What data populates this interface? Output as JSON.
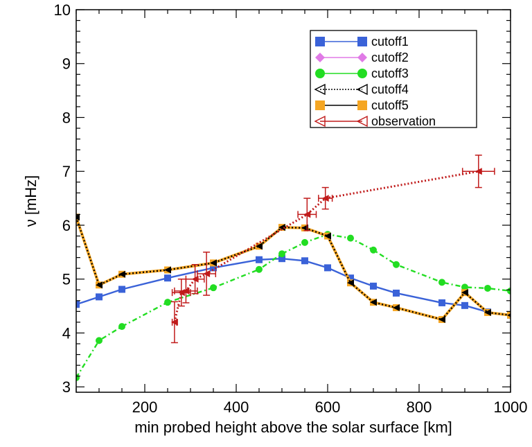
{
  "chart_data": {
    "type": "line",
    "title": "",
    "xlabel": "min probed height above the solar surface [km]",
    "ylabel": "ν [mHz]",
    "xlim": [
      50,
      1000
    ],
    "ylim": [
      2.9,
      10
    ],
    "xticks": [
      200,
      400,
      600,
      800,
      1000
    ],
    "xtick_labels": [
      "200",
      "400",
      "600",
      "800",
      "1000"
    ],
    "yticks": [
      3,
      4,
      5,
      6,
      7,
      8,
      9,
      10
    ],
    "ytick_labels": [
      "3",
      "4",
      "5",
      "6",
      "7",
      "8",
      "9",
      "10"
    ],
    "legend_position": "top-right",
    "series": [
      {
        "name": "cutoff1",
        "color": "#3a62d8",
        "line": "solid",
        "marker": "square",
        "points": [
          [
            50,
            4.53
          ],
          [
            100,
            4.67
          ],
          [
            150,
            4.81
          ],
          [
            250,
            5.02
          ],
          [
            350,
            5.21
          ],
          [
            450,
            5.36
          ],
          [
            500,
            5.38
          ],
          [
            550,
            5.34
          ],
          [
            600,
            5.21
          ],
          [
            650,
            5.02
          ],
          [
            700,
            4.87
          ],
          [
            750,
            4.74
          ],
          [
            850,
            4.56
          ],
          [
            900,
            4.51
          ],
          [
            950,
            4.39
          ],
          [
            1000,
            4.33
          ]
        ]
      },
      {
        "name": "cutoff2",
        "color": "#e07ae6",
        "line": "solid",
        "marker": "diamond",
        "points": []
      },
      {
        "name": "cutoff3",
        "color": "#22dd22",
        "line": "dashdot",
        "marker": "circle",
        "points": [
          [
            50,
            3.17
          ],
          [
            100,
            3.86
          ],
          [
            150,
            4.12
          ],
          [
            250,
            4.57
          ],
          [
            350,
            4.84
          ],
          [
            450,
            5.18
          ],
          [
            500,
            5.47
          ],
          [
            550,
            5.68
          ],
          [
            600,
            5.83
          ],
          [
            650,
            5.76
          ],
          [
            700,
            5.54
          ],
          [
            750,
            5.27
          ],
          [
            850,
            4.94
          ],
          [
            900,
            4.85
          ],
          [
            950,
            4.83
          ],
          [
            1000,
            4.78
          ]
        ]
      },
      {
        "name": "cutoff4",
        "color": "#000000",
        "line": "dotted",
        "marker": "triangle-left",
        "points": [
          [
            50,
            6.15
          ],
          [
            100,
            4.89
          ],
          [
            150,
            5.09
          ],
          [
            250,
            5.17
          ],
          [
            350,
            5.3
          ],
          [
            450,
            5.61
          ],
          [
            500,
            5.96
          ],
          [
            550,
            5.95
          ],
          [
            600,
            5.8
          ],
          [
            650,
            4.93
          ],
          [
            700,
            4.57
          ],
          [
            750,
            4.47
          ],
          [
            850,
            4.25
          ],
          [
            900,
            4.75
          ],
          [
            950,
            4.38
          ],
          [
            1000,
            4.33
          ]
        ]
      },
      {
        "name": "cutoff5",
        "color": "#f5a623",
        "line": "solid",
        "marker": "square",
        "points": [
          [
            50,
            6.15
          ],
          [
            100,
            4.89
          ],
          [
            150,
            5.09
          ],
          [
            250,
            5.17
          ],
          [
            350,
            5.3
          ],
          [
            450,
            5.61
          ],
          [
            500,
            5.96
          ],
          [
            550,
            5.95
          ],
          [
            600,
            5.8
          ],
          [
            650,
            4.93
          ],
          [
            700,
            4.57
          ],
          [
            750,
            4.47
          ],
          [
            850,
            4.25
          ],
          [
            900,
            4.75
          ],
          [
            950,
            4.38
          ],
          [
            1000,
            4.33
          ]
        ]
      },
      {
        "name": "observation",
        "color": "#c01a1a",
        "line": "dotted",
        "marker": "triangle-left",
        "points": [
          [
            265,
            4.2
          ],
          [
            280,
            4.75
          ],
          [
            290,
            4.78
          ],
          [
            310,
            5.0
          ],
          [
            335,
            5.1
          ],
          [
            555,
            6.2
          ],
          [
            595,
            6.5
          ],
          [
            930,
            7.0
          ]
        ],
        "xerr": [
          5,
          20,
          25,
          20,
          20,
          20,
          15,
          35
        ],
        "yerr": [
          0.38,
          0.25,
          0.22,
          0.27,
          0.4,
          0.3,
          0.2,
          0.3
        ]
      }
    ]
  }
}
